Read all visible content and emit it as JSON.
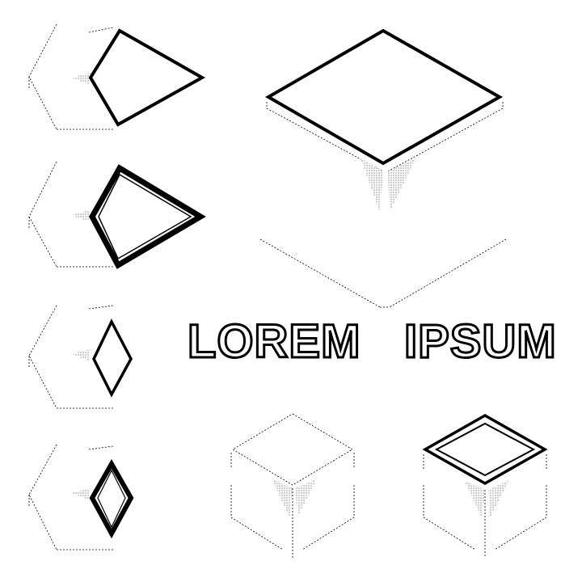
{
  "title": {
    "word_1": "LOREM",
    "word_2": "IPSUM"
  },
  "colors": {
    "ink": "#000000",
    "background": "#ffffff"
  },
  "illustration": {
    "style": "isometric line-art boxes with stippled shading",
    "small_boxes_left_column": 4,
    "large_boxes": 3
  }
}
